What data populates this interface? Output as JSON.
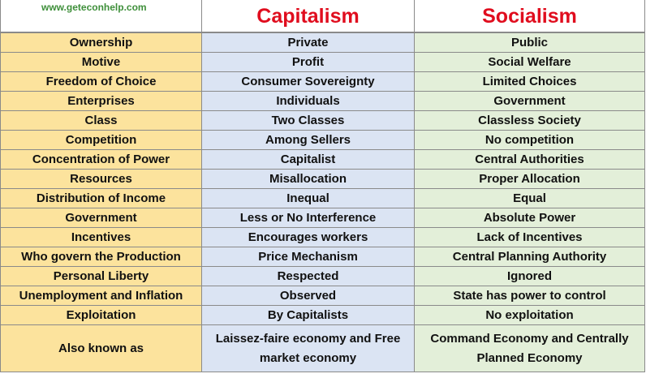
{
  "header": {
    "website": "www.geteconhelp.com",
    "col_capitalism": "Capitalism",
    "col_socialism": "Socialism"
  },
  "colors": {
    "header_text": "#e00d1e",
    "website_text": "#3e8f3a",
    "feature_col_bg": "#fce39d",
    "capitalism_col_bg": "#dbe4f3",
    "socialism_col_bg": "#e3efd9"
  },
  "rows": [
    {
      "feature": "Ownership",
      "capitalism": "Private",
      "socialism": "Public"
    },
    {
      "feature": "Motive",
      "capitalism": "Profit",
      "socialism": "Social Welfare"
    },
    {
      "feature": "Freedom of Choice",
      "capitalism": "Consumer Sovereignty",
      "socialism": "Limited Choices"
    },
    {
      "feature": "Enterprises",
      "capitalism": "Individuals",
      "socialism": "Government"
    },
    {
      "feature": "Class",
      "capitalism": "Two Classes",
      "socialism": "Classless Society"
    },
    {
      "feature": "Competition",
      "capitalism": "Among Sellers",
      "socialism": "No competition"
    },
    {
      "feature": "Concentration of Power",
      "capitalism": "Capitalist",
      "socialism": "Central Authorities"
    },
    {
      "feature": "Resources",
      "capitalism": "Misallocation",
      "socialism": "Proper Allocation"
    },
    {
      "feature": "Distribution of Income",
      "capitalism": "Inequal",
      "socialism": "Equal"
    },
    {
      "feature": "Government",
      "capitalism": "Less or No Interference",
      "socialism": "Absolute Power"
    },
    {
      "feature": "Incentives",
      "capitalism": "Encourages workers",
      "socialism": "Lack of Incentives"
    },
    {
      "feature": "Who govern the Production",
      "capitalism": "Price Mechanism",
      "socialism": "Central Planning Authority"
    },
    {
      "feature": "Personal Liberty",
      "capitalism": "Respected",
      "socialism": "Ignored"
    },
    {
      "feature": "Unemployment and Inflation",
      "capitalism": "Observed",
      "socialism": "State has power to control"
    },
    {
      "feature": "Exploitation",
      "capitalism": "By Capitalists",
      "socialism": "No exploitation"
    },
    {
      "feature": "Also known as",
      "capitalism": "Laissez-faire economy and Free market economy",
      "socialism": "Command Economy and Centrally Planned Economy"
    }
  ]
}
